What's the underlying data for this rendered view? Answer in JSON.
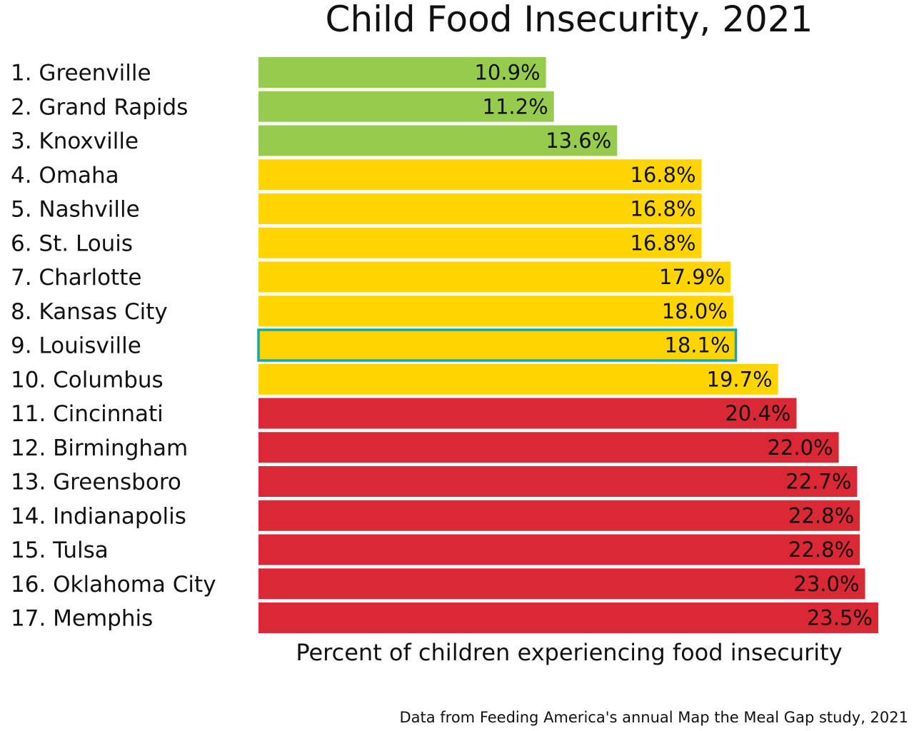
{
  "chart_data": {
    "type": "bar",
    "orientation": "horizontal",
    "title": "Child Food Insecurity, 2021",
    "xlabel": "Percent of children experiencing food insecurity",
    "source_note": "Data from Feeding America's annual Map the Meal Gap study, 2021",
    "xlim": [
      0,
      23.5
    ],
    "grid": false,
    "categories": [
      "1. Greenville",
      "2. Grand Rapids",
      "3. Knoxville",
      "4. Omaha",
      "5. Nashville",
      "6. St. Louis",
      "7. Charlotte",
      "8. Kansas City",
      "9. Louisville",
      "10. Columbus",
      "11. Cincinnati",
      "12. Birmingham",
      "13. Greensboro",
      "14. Indianapolis",
      "15. Tulsa",
      "16. Oklahoma City",
      "17. Memphis"
    ],
    "values": [
      10.9,
      11.2,
      13.6,
      16.8,
      16.8,
      16.8,
      17.9,
      18.0,
      18.1,
      19.7,
      20.4,
      22.0,
      22.7,
      22.8,
      22.8,
      23.0,
      23.5
    ],
    "value_labels": [
      "10.9%",
      "11.2%",
      "13.6%",
      "16.8%",
      "16.8%",
      "16.8%",
      "17.9%",
      "18.0%",
      "18.1%",
      "19.7%",
      "20.4%",
      "22.0%",
      "22.7%",
      "22.8%",
      "22.8%",
      "23.0%",
      "23.5%"
    ],
    "tiers": [
      "green",
      "green",
      "green",
      "yellow",
      "yellow",
      "yellow",
      "yellow",
      "yellow",
      "yellow",
      "yellow",
      "red",
      "red",
      "red",
      "red",
      "red",
      "red",
      "red"
    ],
    "highlighted": "9. Louisville",
    "colors": {
      "green": "#97cb4f",
      "yellow": "#ffd500",
      "red": "#da2834",
      "highlight": "#0aa9b8"
    }
  }
}
